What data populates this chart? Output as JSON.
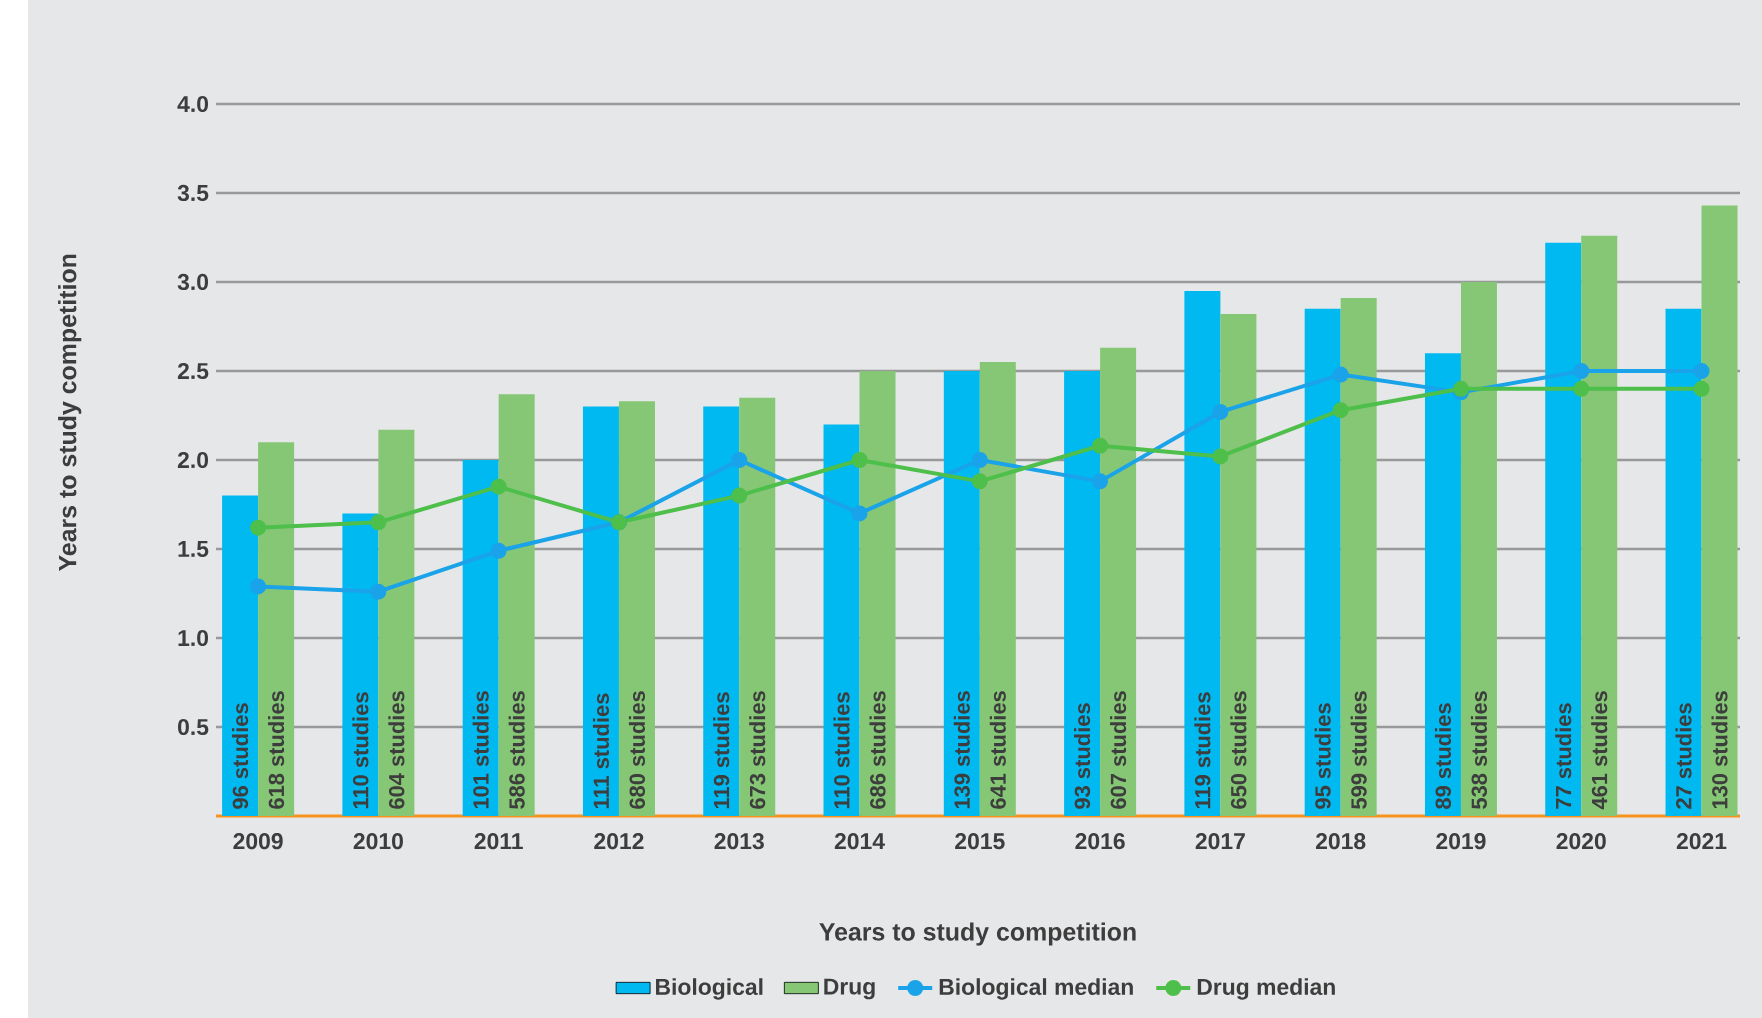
{
  "chart_data": {
    "type": "bar",
    "xlabel": "Years to study competition",
    "ylabel": "Years to study competition",
    "categories": [
      "2009",
      "2010",
      "2011",
      "2012",
      "2013",
      "2014",
      "2015",
      "2016",
      "2017",
      "2018",
      "2019",
      "2020",
      "2021"
    ],
    "series": [
      {
        "name": "Biological",
        "type": "bar",
        "color": "#00b9f1",
        "values": [
          1.8,
          1.7,
          2.0,
          2.3,
          2.3,
          2.2,
          2.5,
          2.5,
          2.95,
          2.85,
          2.6,
          3.22,
          2.85
        ]
      },
      {
        "name": "Drug",
        "type": "bar",
        "color": "#86c775",
        "values": [
          2.1,
          2.17,
          2.37,
          2.33,
          2.35,
          2.5,
          2.55,
          2.63,
          2.82,
          2.91,
          3.0,
          3.26,
          3.43
        ]
      },
      {
        "name": "Biological median",
        "type": "line",
        "color": "#1aa3e8",
        "values": [
          1.29,
          1.26,
          1.49,
          1.65,
          2.0,
          1.7,
          2.0,
          1.88,
          2.27,
          2.48,
          2.38,
          2.5,
          2.5
        ]
      },
      {
        "name": "Drug median",
        "type": "line",
        "color": "#4dbf4a",
        "values": [
          1.62,
          1.65,
          1.85,
          1.65,
          1.8,
          2.0,
          1.88,
          2.08,
          2.02,
          2.28,
          2.4,
          2.4,
          2.4
        ]
      }
    ],
    "annotations": [
      "96 studies",
      "618 studies",
      "110 studies",
      "604 studies",
      "101 studies",
      "586 studies",
      "111 studies",
      "680 studies",
      "119 studies",
      "673 studies",
      "110 studies",
      "686 studies",
      "139 studies",
      "641 studies",
      "93 studies",
      "607 studies",
      "119 studies",
      "650 studies",
      "95 studies",
      "599 studies",
      "89 studies",
      "538 studies",
      "77 studies",
      "461 studies",
      "27 studies",
      "130 studies"
    ],
    "ylim": [
      0,
      4.0
    ],
    "yticks": [
      {
        "value": 0.5,
        "label": "0.5"
      },
      {
        "value": 1.0,
        "label": "1.0"
      },
      {
        "value": 1.5,
        "label": "1.5"
      },
      {
        "value": 2.0,
        "label": "2.0"
      },
      {
        "value": 2.5,
        "label": "2.5"
      },
      {
        "value": 3.0,
        "label": "3.0"
      },
      {
        "value": 3.5,
        "label": "3.5"
      },
      {
        "value": 4.0,
        "label": "4.0"
      }
    ],
    "grid": "y",
    "legend": "bottom",
    "marker": "circle",
    "line_style": "solid"
  }
}
